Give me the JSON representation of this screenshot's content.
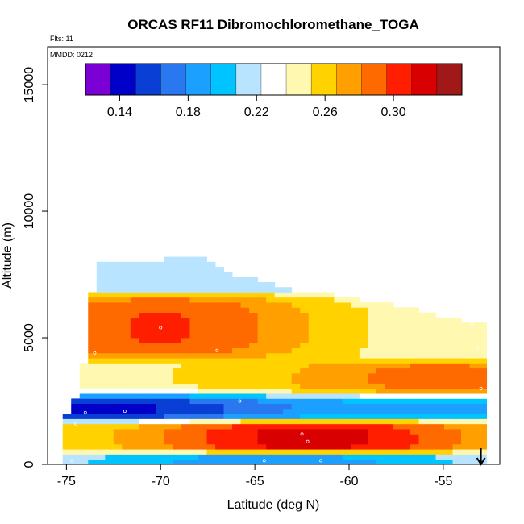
{
  "chart_data": {
    "type": "heatmap",
    "title": "ORCAS RF11 Dibromochloromethane_TOGA",
    "flights_label": "Flts: 11",
    "date_label": "MMDD: 0212",
    "xlabel": "Latitude (deg N)",
    "ylabel": "Altitude (m)",
    "xlim": [
      -76,
      -52
    ],
    "ylim": [
      0,
      16500
    ],
    "x_ticks": [
      -75,
      -70,
      -65,
      -60,
      -55
    ],
    "x_tick_labels": [
      "-75",
      "-70",
      "-65",
      "-60",
      "-55"
    ],
    "y_ticks": [
      0,
      5000,
      10000,
      15000
    ],
    "y_tick_labels": [
      "0",
      "5000",
      "10000",
      "15000"
    ],
    "colorbar": {
      "range": [
        0.12,
        0.34
      ],
      "ticks": [
        0.14,
        0.18,
        0.22,
        0.26,
        0.3
      ],
      "tick_labels": [
        "0.14",
        "0.18",
        "0.22",
        "0.26",
        "0.30"
      ],
      "colors": [
        "#7a00d6",
        "#0000c8",
        "#0a3fd6",
        "#2a78f0",
        "#1ca0ff",
        "#00c4ff",
        "#b8e4ff",
        "#ffffff",
        "#fff8b0",
        "#ffd200",
        "#ffa000",
        "#ff6a00",
        "#ff1e00",
        "#d80000",
        "#a01818"
      ]
    },
    "profile": {
      "lat_range": [
        -75.2,
        -53.0
      ],
      "bottom_altitude": 0,
      "top_altitude_by_lat": [
        [
          -75.2,
          1700
        ],
        [
          -74.5,
          2600
        ],
        [
          -73.8,
          4800
        ],
        [
          -73.5,
          7900
        ],
        [
          -72.0,
          7900
        ],
        [
          -70.0,
          8000
        ],
        [
          -68.0,
          8100
        ],
        [
          -66.0,
          7400
        ],
        [
          -63.0,
          6800
        ],
        [
          -60.0,
          6500
        ],
        [
          -57.0,
          6100
        ],
        [
          -55.0,
          5700
        ],
        [
          -53.0,
          5500
        ]
      ],
      "top_floor": [
        [
          -75.2,
          1500
        ],
        [
          -60.0,
          1500
        ],
        [
          -57.5,
          2100
        ],
        [
          -55.0,
          2600
        ],
        [
          -53.0,
          3000
        ]
      ],
      "layers": [
        {
          "alt_center": 5400,
          "alt_half_width": 700,
          "lat_peak": -70.0,
          "value_peak": 0.3,
          "value_edge": 0.24
        },
        {
          "alt_center": 3300,
          "alt_half_width": 500,
          "lat_peak": -55.0,
          "value_peak": 0.29,
          "value_edge": 0.25
        },
        {
          "alt_center": 2300,
          "alt_half_width": 400,
          "lat_peak": -73.5,
          "value_peak": 0.14,
          "value_edge": 0.19
        },
        {
          "alt_center": 1100,
          "alt_half_width": 450,
          "lat_peak": -62.0,
          "value_peak": 0.32,
          "value_edge": 0.25
        },
        {
          "alt_center": 200,
          "alt_half_width": 200,
          "lat_peak": -64.0,
          "value_peak": 0.18,
          "value_edge": 0.22
        }
      ],
      "background_value": 0.21
    },
    "sample_points": [
      {
        "lat": -74.7,
        "alt": 150
      },
      {
        "lat": -74.0,
        "alt": 2050
      },
      {
        "lat": -74.5,
        "alt": 1600
      },
      {
        "lat": -73.6,
        "alt": 7850
      },
      {
        "lat": -73.5,
        "alt": 4400
      },
      {
        "lat": -71.9,
        "alt": 2100
      },
      {
        "lat": -70.0,
        "alt": 5400
      },
      {
        "lat": -67.0,
        "alt": 4500
      },
      {
        "lat": -65.8,
        "alt": 2500
      },
      {
        "lat": -64.5,
        "alt": 150
      },
      {
        "lat": -62.5,
        "alt": 1200
      },
      {
        "lat": -62.2,
        "alt": 900
      },
      {
        "lat": -61.5,
        "alt": 150
      },
      {
        "lat": -53.2,
        "alt": 4600
      },
      {
        "lat": -53.0,
        "alt": 3000
      },
      {
        "lat": -53.5,
        "alt": 5500
      }
    ],
    "arrow_lat": -53.0
  }
}
